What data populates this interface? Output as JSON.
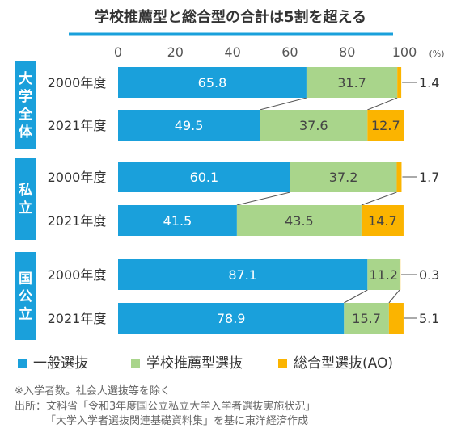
{
  "chart_data": {
    "type": "bar",
    "stacked": true,
    "orientation": "horizontal",
    "title": "学校推薦型と総合型の合計は5割を超える",
    "xlim": [
      0,
      100
    ],
    "x_ticks": [
      "0",
      "20",
      "40",
      "60",
      "80",
      "100"
    ],
    "x_unit": "(%)",
    "groups": [
      {
        "name": "大学全体",
        "rows": [
          {
            "label": "2000年度",
            "values": [
              65.8,
              31.7,
              1.4
            ],
            "labels": [
              "65.8",
              "31.7",
              "1.4"
            ]
          },
          {
            "label": "2021年度",
            "values": [
              49.5,
              37.6,
              12.7
            ],
            "labels": [
              "49.5",
              "37.6",
              "12.7"
            ]
          }
        ]
      },
      {
        "name": "私立",
        "rows": [
          {
            "label": "2000年度",
            "values": [
              60.1,
              37.2,
              1.7
            ],
            "labels": [
              "60.1",
              "37.2",
              "1.7"
            ]
          },
          {
            "label": "2021年度",
            "values": [
              41.5,
              43.5,
              14.7
            ],
            "labels": [
              "41.5",
              "43.5",
              "14.7"
            ]
          }
        ]
      },
      {
        "name": "国公立",
        "rows": [
          {
            "label": "2000年度",
            "values": [
              87.1,
              11.2,
              0.3
            ],
            "labels": [
              "87.1",
              "11.2",
              "0.3"
            ]
          },
          {
            "label": "2021年度",
            "values": [
              78.9,
              15.7,
              5.1
            ],
            "labels": [
              "78.9",
              "15.7",
              "5.1"
            ]
          }
        ]
      }
    ],
    "series": [
      {
        "name": "一般選抜",
        "color": "#1aa0db"
      },
      {
        "name": "学校推薦型選抜",
        "color": "#a9d58b"
      },
      {
        "name": "総合型選抜(AO)",
        "color": "#fbb400"
      }
    ],
    "legend_position": "bottom",
    "grid": false
  },
  "notes": [
    "※入学者数。社会人選抜等を除く",
    "出所：文科省「令和3年度国公立私立大学入学者選抜実施状況」",
    "「大学入学者選抜関連基礎資料集」を基に東洋経済作成"
  ],
  "colors": {
    "title_underline": "#1aa0db",
    "group_label_bg": "#1aa0db",
    "connector": "#555555",
    "text": "#333333"
  }
}
